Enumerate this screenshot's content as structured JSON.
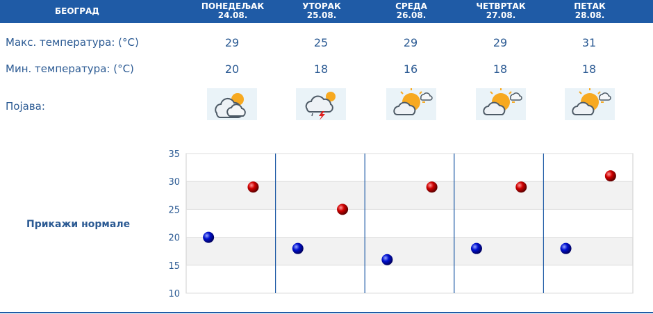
{
  "header": {
    "city": "БЕОГРАД",
    "days": [
      {
        "name": "ПОНЕДЕЉАК",
        "date": "24.08."
      },
      {
        "name": "УТОРАК",
        "date": "25.08."
      },
      {
        "name": "СРЕДА",
        "date": "26.08."
      },
      {
        "name": "ЧЕТВРТАК",
        "date": "27.08."
      },
      {
        "name": "ПЕТАК",
        "date": "28.08."
      }
    ]
  },
  "rows": {
    "max_label": "Макс. температура: (°C)",
    "min_label": "Мин. температура: (°C)",
    "weather_label": "Појава:"
  },
  "max_temps": [
    "29",
    "25",
    "29",
    "29",
    "31"
  ],
  "min_temps": [
    "20",
    "18",
    "16",
    "18",
    "18"
  ],
  "weather_icons": [
    "partly-cloudy-icon",
    "thunderstorm-icon",
    "mostly-sunny-icon",
    "mostly-sunny-icon",
    "mostly-sunny-icon"
  ],
  "normals_link": "Прикажи нормале",
  "colors": {
    "header_bg": "#1f5ba6",
    "text": "#2b5a93",
    "max_marker": "#cc0000",
    "min_marker": "#0000cc"
  },
  "chart_data": {
    "type": "scatter",
    "categories": [
      "24.08.",
      "25.08.",
      "26.08.",
      "27.08.",
      "28.08."
    ],
    "series": [
      {
        "values": [
          29,
          25,
          29,
          29,
          31
        ],
        "color": "#cc0000"
      },
      {
        "values": [
          20,
          18,
          16,
          18,
          18
        ],
        "color": "#0000cc"
      }
    ],
    "ylim": [
      10,
      35
    ],
    "yticks": [
      "10",
      "15",
      "20",
      "25",
      "30",
      "35"
    ]
  }
}
